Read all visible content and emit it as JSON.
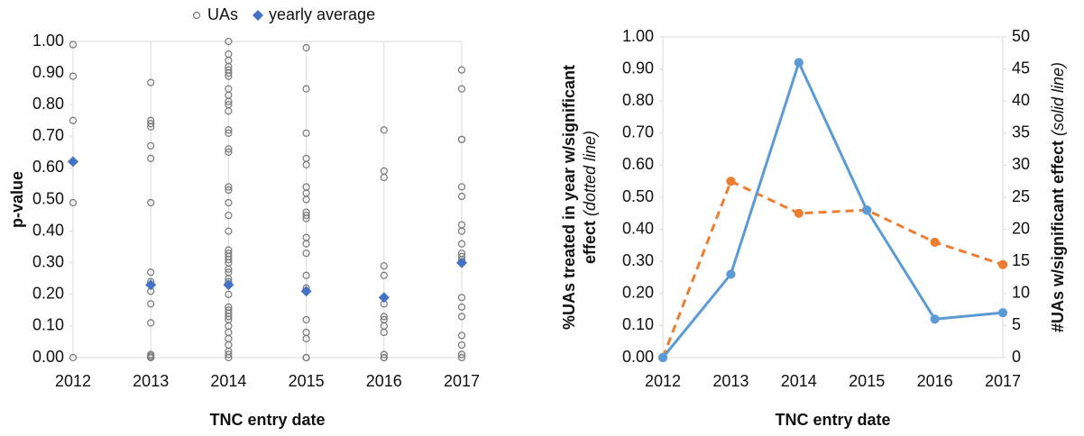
{
  "chart_data": [
    {
      "type": "scatter",
      "x_label": "TNC entry date",
      "y_label": "p-value",
      "xlim": [
        2012,
        2017
      ],
      "xticks": [
        2012,
        2013,
        2014,
        2015,
        2016,
        2017
      ],
      "ylim": [
        0,
        1
      ],
      "yticks": [
        {
          "value": 0,
          "label": "0.00"
        },
        {
          "value": 0.1,
          "label": "0.10"
        },
        {
          "value": 0.2,
          "label": "0.20"
        },
        {
          "value": 0.3,
          "label": "0.30"
        },
        {
          "value": 0.4,
          "label": "0.40"
        },
        {
          "value": 0.5,
          "label": "0.50"
        },
        {
          "value": 0.6,
          "label": "0.60"
        },
        {
          "value": 0.7,
          "label": "0.70"
        },
        {
          "value": 0.8,
          "label": "0.80"
        },
        {
          "value": 0.9,
          "label": "0.90"
        },
        {
          "value": 1,
          "label": "1.00"
        }
      ],
      "grid": "x",
      "legend": "top",
      "series": [
        {
          "name": "UAs",
          "color": "#777777",
          "marker": "circle",
          "x": [
            2012,
            2012,
            2012,
            2012,
            2012,
            2013,
            2013,
            2013,
            2013,
            2013,
            2013,
            2013,
            2013,
            2013,
            2013,
            2013,
            2013,
            2013,
            2013,
            2013,
            2013,
            2014,
            2014,
            2014,
            2014,
            2014,
            2014,
            2014,
            2014,
            2014,
            2014,
            2014,
            2014,
            2014,
            2014,
            2014,
            2014,
            2014,
            2014,
            2014,
            2014,
            2014,
            2014,
            2014,
            2014,
            2014,
            2014,
            2014,
            2014,
            2014,
            2014,
            2014,
            2014,
            2014,
            2014,
            2014,
            2014,
            2014,
            2014,
            2014,
            2014,
            2014,
            2014,
            2014,
            2015,
            2015,
            2015,
            2015,
            2015,
            2015,
            2015,
            2015,
            2015,
            2015,
            2015,
            2015,
            2015,
            2015,
            2015,
            2015,
            2015,
            2015,
            2015,
            2015,
            2015,
            2016,
            2016,
            2016,
            2016,
            2016,
            2016,
            2016,
            2016,
            2016,
            2016,
            2016,
            2016,
            2016,
            2017,
            2017,
            2017,
            2017,
            2017,
            2017,
            2017,
            2017,
            2017,
            2017,
            2017,
            2017,
            2017,
            2017,
            2017,
            2017,
            2017,
            2017,
            2017
          ],
          "values": [
            0.99,
            0.89,
            0.75,
            0.49,
            0.0,
            0.87,
            0.75,
            0.74,
            0.73,
            0.67,
            0.63,
            0.49,
            0.27,
            0.24,
            0.21,
            0.17,
            0.11,
            0.01,
            0.005,
            0.0,
            0.0,
            1.0,
            0.96,
            0.94,
            0.92,
            0.91,
            0.9,
            0.89,
            0.85,
            0.83,
            0.81,
            0.8,
            0.78,
            0.72,
            0.71,
            0.66,
            0.65,
            0.54,
            0.53,
            0.49,
            0.45,
            0.4,
            0.34,
            0.33,
            0.32,
            0.31,
            0.3,
            0.28,
            0.27,
            0.25,
            0.24,
            0.2,
            0.16,
            0.15,
            0.14,
            0.13,
            0.12,
            0.1,
            0.08,
            0.06,
            0.04,
            0.02,
            0.01,
            0.0,
            0.98,
            0.85,
            0.71,
            0.63,
            0.61,
            0.54,
            0.52,
            0.5,
            0.46,
            0.45,
            0.44,
            0.38,
            0.36,
            0.33,
            0.26,
            0.22,
            0.12,
            0.08,
            0.06,
            0.0,
            0.0,
            0.72,
            0.59,
            0.57,
            0.29,
            0.26,
            0.17,
            0.13,
            0.12,
            0.1,
            0.08,
            0.01,
            0.0,
            0.0,
            0.91,
            0.85,
            0.69,
            0.69,
            0.54,
            0.51,
            0.42,
            0.4,
            0.36,
            0.33,
            0.32,
            0.31,
            0.19,
            0.16,
            0.13,
            0.07,
            0.04,
            0.01,
            0.0
          ]
        },
        {
          "name": "yearly average",
          "color": "#4472c4",
          "marker": "diamond",
          "x": [
            2012,
            2013,
            2014,
            2015,
            2016,
            2017
          ],
          "values": [
            0.62,
            0.23,
            0.23,
            0.21,
            0.19,
            0.3
          ]
        }
      ]
    },
    {
      "type": "line",
      "x_label": "TNC entry date",
      "y_label": [
        "%UAs treated in year w/significant",
        "effect"
      ],
      "y_label_note": "(dotted line)",
      "y2_label": "#UAs w/significant effect",
      "y2_label_note": "(solid line)",
      "xlim": [
        2012,
        2017
      ],
      "xticks": [
        2012,
        2013,
        2014,
        2015,
        2016,
        2017
      ],
      "ylim": [
        0,
        1
      ],
      "yticks": [
        {
          "value": 0,
          "label": "0.00"
        },
        {
          "value": 0.1,
          "label": "0.10"
        },
        {
          "value": 0.2,
          "label": "0.20"
        },
        {
          "value": 0.3,
          "label": "0.30"
        },
        {
          "value": 0.4,
          "label": "0.40"
        },
        {
          "value": 0.5,
          "label": "0.50"
        },
        {
          "value": 0.6,
          "label": "0.60"
        },
        {
          "value": 0.7,
          "label": "0.70"
        },
        {
          "value": 0.8,
          "label": "0.80"
        },
        {
          "value": 0.9,
          "label": "0.90"
        },
        {
          "value": 1,
          "label": "1.00"
        }
      ],
      "y2lim": [
        0,
        50
      ],
      "y2ticks": [
        0,
        5,
        10,
        15,
        20,
        25,
        30,
        35,
        40,
        45,
        50
      ],
      "y_color": "#ed7d31",
      "y2_color": "#5b9bd5",
      "series": [
        {
          "color": "#ed7d31",
          "dashed": true,
          "x": [
            2012,
            2013,
            2014,
            2015,
            2016,
            2017
          ],
          "values": [
            0.0,
            0.55,
            0.45,
            0.46,
            0.36,
            0.29
          ]
        },
        {
          "color": "#5b9bd5",
          "dashed": false,
          "axis": "y2",
          "x": [
            2012,
            2013,
            2014,
            2015,
            2016,
            2017
          ],
          "values": [
            0,
            13,
            46,
            23,
            6,
            7
          ]
        }
      ]
    }
  ]
}
